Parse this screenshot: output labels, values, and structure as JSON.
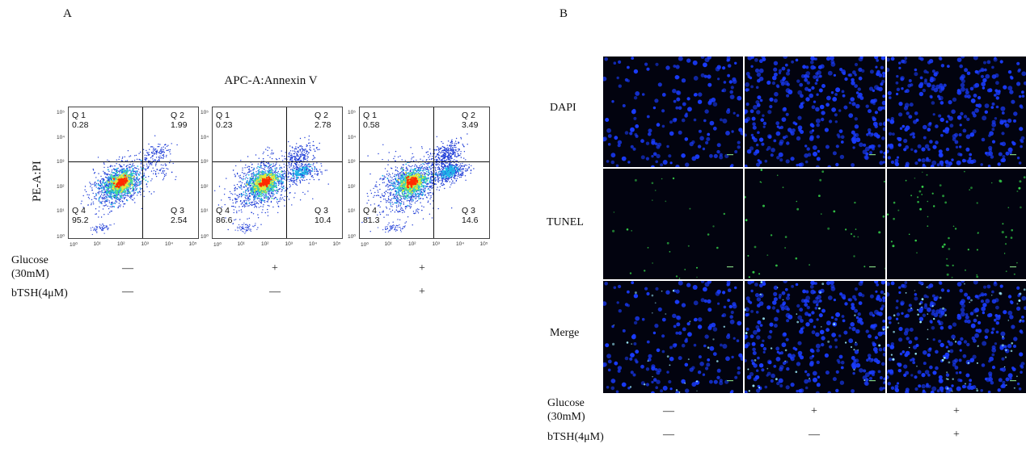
{
  "panel_a": {
    "letter": "A",
    "title": "APC-A:Annexin V",
    "ylabel": "PE-A:PI",
    "x_ticks": [
      "10⁰",
      "10¹",
      "10²",
      "10³",
      "10⁴",
      "10⁵"
    ],
    "y_ticks": [
      "10⁵",
      "10⁴",
      "10³",
      "10²",
      "10¹",
      "10⁰"
    ],
    "plots": [
      {
        "q1_label": "Q 1",
        "q1_value": "0.28",
        "q2_label": "Q 2",
        "q2_value": "1.99",
        "q3_label": "Q 3",
        "q3_value": "2.54",
        "q4_label": "Q 4",
        "q4_value": "95.2"
      },
      {
        "q1_label": "Q 1",
        "q1_value": "0.23",
        "q2_label": "Q 2",
        "q2_value": "2.78",
        "q3_label": "Q 3",
        "q3_value": "10.4",
        "q4_label": "Q 4",
        "q4_value": "86.6"
      },
      {
        "q1_label": "Q 1",
        "q1_value": "0.58",
        "q2_label": "Q 2",
        "q2_value": "3.49",
        "q3_label": "Q 3",
        "q3_value": "14.6",
        "q4_label": "Q 4",
        "q4_value": "81.3"
      }
    ],
    "conditions": {
      "glucose_label_line1": "Glucose",
      "glucose_label_line2": "(30mM)",
      "btsh_label": "bTSH(4μM)",
      "glucose": [
        "—",
        "+",
        "+"
      ],
      "btsh": [
        "—",
        "—",
        "+"
      ]
    }
  },
  "panel_b": {
    "letter": "B",
    "rows": [
      "DAPI",
      "TUNEL",
      "Merge"
    ],
    "conditions": {
      "glucose_label_line1": "Glucose",
      "glucose_label_line2": "(30mM)",
      "btsh_label": "bTSH(4μM)",
      "glucose": [
        "—",
        "+",
        "+"
      ],
      "btsh": [
        "—",
        "—",
        "+"
      ]
    }
  },
  "colors": {
    "dapi": "#1a3cff",
    "tunel": "#35d24a",
    "background_dark": "#02030f",
    "density_high": "#ff2a00",
    "density_mid": "#e8e83a",
    "density_low": "#1d3bd6"
  }
}
